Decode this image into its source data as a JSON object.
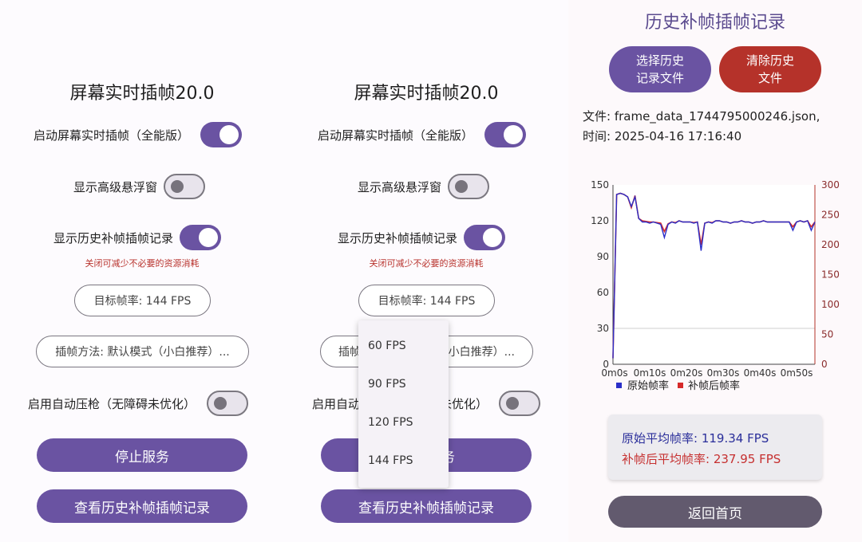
{
  "screen1": {
    "title": "屏幕实时插帧20.0",
    "toggle_fullscreen": {
      "label": "启动屏幕实时插帧（全能版）",
      "on": true
    },
    "toggle_float": {
      "label": "显示高级悬浮窗",
      "on": false
    },
    "toggle_history": {
      "label": "显示历史补帧插帧记录",
      "on": true
    },
    "hint": "关闭可减少不必要的资源消耗",
    "target_fps": "目标帧率: 144 FPS",
    "method": "插帧方法: 默认模式（小白推荐）...",
    "toggle_recoil": {
      "label": "启用自动压枪（无障碍未优化）",
      "on": false
    },
    "stop_button": "停止服务",
    "view_history_button": "查看历史补帧插帧记录"
  },
  "screen2": {
    "title": "屏幕实时插帧20.0",
    "toggle_fullscreen": {
      "label": "启动屏幕实时插帧（全能版）",
      "on": true
    },
    "toggle_float": {
      "label": "显示高级悬浮窗",
      "on": false
    },
    "toggle_history": {
      "label": "显示历史补帧插帧记录",
      "on": true
    },
    "hint": "关闭可减少不必要的资源消耗",
    "target_fps": "目标帧率: 144 FPS",
    "method_partial_left": "插帧",
    "method_partial_right": "小白推荐）...",
    "recoil_partial_left": "启用自动",
    "recoil_partial_right": "未优化）",
    "stop_partial": "务",
    "view_history_button": "查看历史补帧插帧记录",
    "dropdown_options": [
      "60 FPS",
      "90 FPS",
      "120 FPS",
      "144 FPS"
    ]
  },
  "screen3": {
    "title": "历史补帧插帧记录",
    "select_file_button": "选择历史\n记录文件",
    "clear_history_button": "清除历史\n文件",
    "file_line": "文件: frame_data_1744795000246.json,",
    "time_line": "时间: 2025-04-16 17:16:40",
    "avg_original": "原始平均帧率: 119.34 FPS",
    "avg_interpolated": "补帧后平均帧率: 237.95 FPS",
    "back_button": "返回首页"
  },
  "colors": {
    "accent": "#6a53a2",
    "danger": "#b5322a",
    "original_series": "#2b2fc8",
    "interpolated_series": "#d62a2a"
  },
  "chart_data": {
    "type": "line",
    "xlabel": "",
    "ylabel": "",
    "x_ticks": [
      "0m0s",
      "0m10s",
      "0m20s",
      "0m30s",
      "0m40s",
      "0m50s"
    ],
    "xlim": [
      0,
      55
    ],
    "y_left_ticks": [
      0,
      30,
      60,
      90,
      120,
      150
    ],
    "ylim_left": [
      0,
      150
    ],
    "y_right_ticks": [
      0,
      50,
      100,
      150,
      200,
      250,
      300
    ],
    "ylim_right": [
      0,
      300
    ],
    "legend": [
      "原始帧率",
      "补帧后帧率"
    ],
    "legend_position": "bottom",
    "series": [
      {
        "name": "原始帧率",
        "axis": "left",
        "x": [
          0,
          1,
          2,
          3,
          4,
          5,
          6,
          7,
          8,
          9,
          10,
          11,
          12,
          13,
          14,
          15,
          16,
          17,
          18,
          19,
          20,
          21,
          22,
          23,
          24,
          25,
          26,
          27,
          28,
          29,
          30,
          31,
          32,
          33,
          34,
          35,
          36,
          37,
          38,
          39,
          40,
          41,
          42,
          43,
          44,
          45,
          46,
          47,
          48,
          49,
          50,
          51,
          52,
          53,
          54,
          55
        ],
        "y": [
          5,
          142,
          143,
          142,
          140,
          132,
          140,
          122,
          119,
          119,
          118,
          119,
          118,
          117,
          106,
          117,
          119,
          118,
          120,
          119,
          119,
          119,
          118,
          119,
          95,
          118,
          119,
          118,
          120,
          120,
          119,
          119,
          118,
          119,
          119,
          120,
          119,
          119,
          118,
          119,
          119,
          120,
          119,
          119,
          119,
          119,
          119,
          119,
          119,
          112,
          119,
          120,
          119,
          120,
          112,
          119
        ]
      },
      {
        "name": "补帧后帧率",
        "axis": "right",
        "x": [
          0,
          1,
          2,
          3,
          4,
          5,
          6,
          7,
          8,
          9,
          10,
          11,
          12,
          13,
          14,
          15,
          16,
          17,
          18,
          19,
          20,
          21,
          22,
          23,
          24,
          25,
          26,
          27,
          28,
          29,
          30,
          31,
          32,
          33,
          34,
          35,
          36,
          37,
          38,
          39,
          40,
          41,
          42,
          43,
          44,
          45,
          46,
          47,
          48,
          49,
          50,
          51,
          52,
          53,
          54,
          55
        ],
        "y": [
          10,
          284,
          286,
          284,
          280,
          262,
          282,
          244,
          240,
          239,
          238,
          238,
          237,
          236,
          222,
          235,
          238,
          237,
          240,
          238,
          238,
          238,
          237,
          238,
          200,
          236,
          238,
          237,
          240,
          240,
          238,
          238,
          236,
          238,
          238,
          240,
          238,
          238,
          236,
          238,
          238,
          240,
          238,
          238,
          238,
          238,
          238,
          238,
          238,
          230,
          238,
          240,
          238,
          240,
          230,
          238
        ]
      }
    ]
  }
}
